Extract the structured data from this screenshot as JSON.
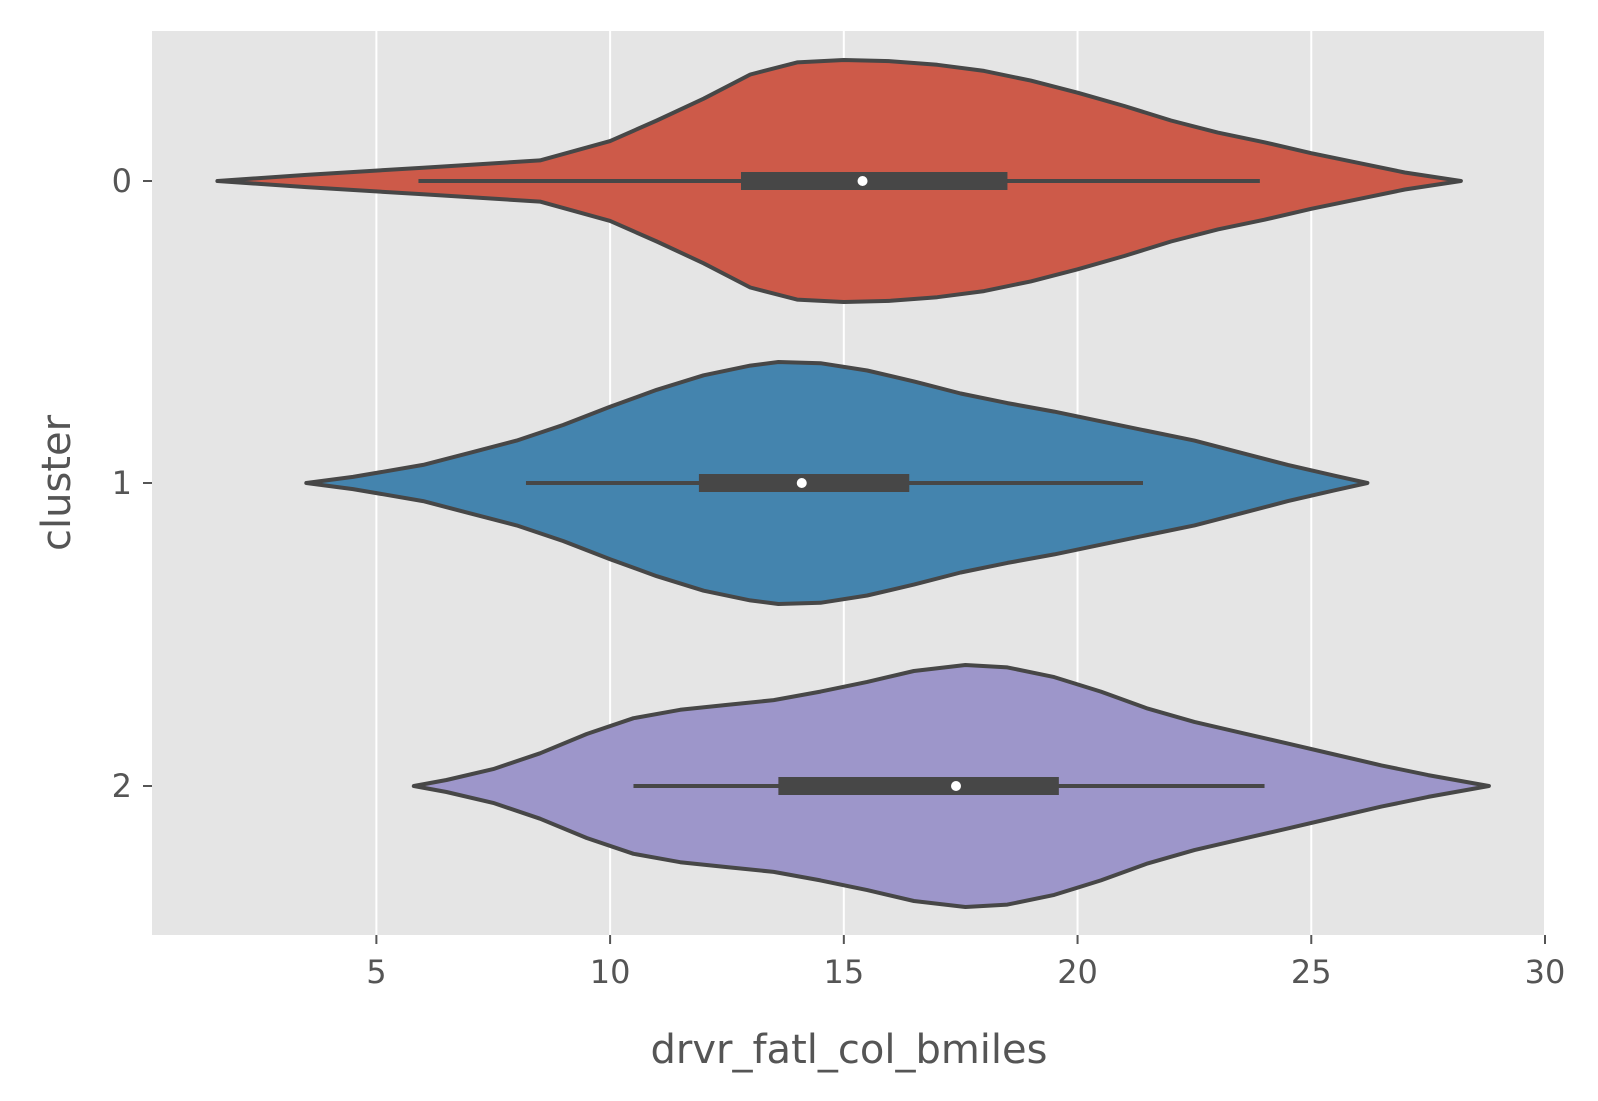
{
  "chart_data": {
    "type": "violin",
    "orientation": "horizontal",
    "xlabel": "drvr_fatl_col_bmiles",
    "ylabel": "cluster",
    "xlim": [
      0.2,
      30
    ],
    "xticks": [
      5,
      10,
      15,
      20,
      25,
      30
    ],
    "grid": true,
    "style": "ggplot",
    "categories": [
      "0",
      "1",
      "2"
    ],
    "violins": [
      {
        "category": "0",
        "color": "#CD5A49",
        "min": 1.6,
        "max": 28.2,
        "whisker_low": 5.9,
        "whisker_high": 23.9,
        "q1": 12.8,
        "median": 15.4,
        "q3": 18.5,
        "density": [
          [
            1.6,
            0
          ],
          [
            3.5,
            0.05
          ],
          [
            6,
            0.11
          ],
          [
            8.5,
            0.17
          ],
          [
            10,
            0.33
          ],
          [
            11,
            0.5
          ],
          [
            12,
            0.68
          ],
          [
            13,
            0.88
          ],
          [
            14,
            0.98
          ],
          [
            15,
            1.0
          ],
          [
            16,
            0.99
          ],
          [
            17,
            0.96
          ],
          [
            18,
            0.91
          ],
          [
            19,
            0.83
          ],
          [
            20,
            0.73
          ],
          [
            21,
            0.62
          ],
          [
            22,
            0.5
          ],
          [
            23,
            0.4
          ],
          [
            24,
            0.32
          ],
          [
            25,
            0.23
          ],
          [
            26,
            0.15
          ],
          [
            27,
            0.07
          ],
          [
            28.2,
            0
          ]
        ]
      },
      {
        "category": "1",
        "color": "#4484AE",
        "min": 3.5,
        "max": 26.2,
        "whisker_low": 8.2,
        "whisker_high": 21.4,
        "q1": 11.9,
        "median": 14.1,
        "q3": 16.4,
        "density": [
          [
            3.5,
            0
          ],
          [
            4.5,
            0.05
          ],
          [
            6,
            0.15
          ],
          [
            7,
            0.25
          ],
          [
            8,
            0.35
          ],
          [
            9,
            0.48
          ],
          [
            10,
            0.63
          ],
          [
            11,
            0.77
          ],
          [
            12,
            0.89
          ],
          [
            13,
            0.97
          ],
          [
            13.6,
            1.0
          ],
          [
            14.5,
            0.99
          ],
          [
            15.5,
            0.93
          ],
          [
            16.5,
            0.84
          ],
          [
            17.5,
            0.74
          ],
          [
            18.5,
            0.66
          ],
          [
            19.5,
            0.59
          ],
          [
            20.5,
            0.51
          ],
          [
            21.5,
            0.43
          ],
          [
            22.5,
            0.35
          ],
          [
            23.5,
            0.25
          ],
          [
            24.5,
            0.15
          ],
          [
            25.5,
            0.06
          ],
          [
            26.2,
            0
          ]
        ]
      },
      {
        "category": "2",
        "color": "#9D96CA",
        "min": 5.8,
        "max": 28.8,
        "whisker_low": 10.5,
        "whisker_high": 24.0,
        "q1": 13.6,
        "median": 17.4,
        "q3": 19.6,
        "density": [
          [
            5.8,
            0
          ],
          [
            6.5,
            0.05
          ],
          [
            7.5,
            0.14
          ],
          [
            8.5,
            0.27
          ],
          [
            9.5,
            0.43
          ],
          [
            10.5,
            0.56
          ],
          [
            11.5,
            0.63
          ],
          [
            12.5,
            0.67
          ],
          [
            13.5,
            0.71
          ],
          [
            14.5,
            0.78
          ],
          [
            15.5,
            0.86
          ],
          [
            16.5,
            0.95
          ],
          [
            17.6,
            1.0
          ],
          [
            18.5,
            0.98
          ],
          [
            19.5,
            0.9
          ],
          [
            20.5,
            0.78
          ],
          [
            21.5,
            0.64
          ],
          [
            22.5,
            0.53
          ],
          [
            23.5,
            0.44
          ],
          [
            24.5,
            0.35
          ],
          [
            25.5,
            0.26
          ],
          [
            26.5,
            0.17
          ],
          [
            27.5,
            0.09
          ],
          [
            28.8,
            0
          ]
        ]
      }
    ]
  },
  "colors": {
    "plot_background": "#E5E5E5",
    "grid": "#FFFFFF",
    "outline": "#474747",
    "text": "#555555",
    "median_marker": "#FFFFFF"
  }
}
